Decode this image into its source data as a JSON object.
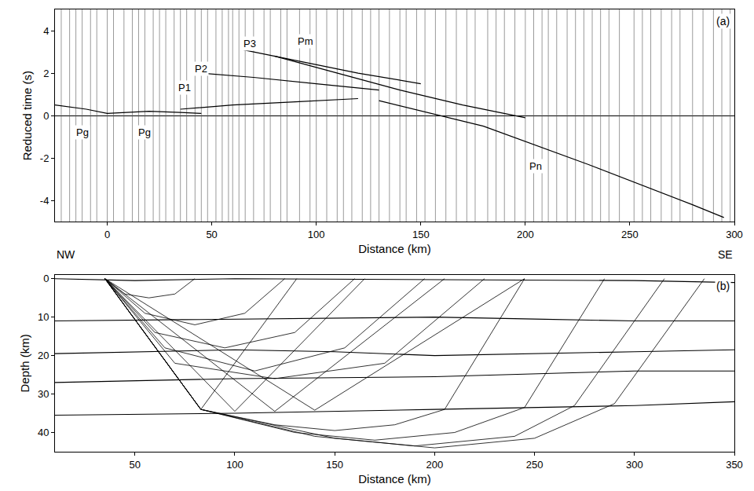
{
  "chart_data": [
    {
      "type": "line",
      "label": "(a)",
      "x_label": "Distance (km)",
      "y_label": "Reduced time (s)",
      "xlim": [
        -25,
        300
      ],
      "xticks": [
        0,
        50,
        100,
        150,
        200,
        250,
        300
      ],
      "ylim": [
        -5,
        5
      ],
      "yticks": [
        -4,
        -2,
        0,
        2,
        4
      ],
      "annotations": [
        {
          "text": "NW"
        },
        {
          "text": "SE"
        }
      ],
      "stations": [
        -22,
        -18,
        -15,
        -12,
        -8,
        -5,
        0,
        3,
        8,
        12,
        15,
        18,
        22,
        25,
        28,
        32,
        35,
        38,
        42,
        45,
        48,
        52,
        55,
        58,
        60,
        63,
        66,
        70,
        75,
        78,
        83,
        86,
        92,
        97,
        100,
        105,
        110,
        113,
        117,
        122,
        126,
        130,
        135,
        140,
        143,
        148,
        152,
        157,
        162,
        167,
        172,
        176,
        182,
        186,
        190,
        195,
        200,
        204,
        208,
        211,
        215,
        220,
        224,
        228,
        232,
        236,
        240,
        245,
        252,
        256,
        260,
        265,
        270,
        274,
        280,
        285,
        290,
        294,
        298
      ],
      "series": [
        {
          "name": "Pg",
          "color": "#000000",
          "x": [
            -25,
            -10,
            0,
            10,
            20,
            35,
            45
          ],
          "values": [
            0.5,
            0.3,
            0.1,
            0.15,
            0.2,
            0.15,
            0.1
          ],
          "labels": [
            [
              -12,
              -0.8
            ],
            [
              18,
              -0.8
            ]
          ]
        },
        {
          "name": "P1",
          "color": "#000000",
          "x": [
            35,
            60,
            90,
            120
          ],
          "values": [
            0.3,
            0.5,
            0.65,
            0.8
          ],
          "labels": [
            [
              37,
              1.3
            ]
          ]
        },
        {
          "name": "P2",
          "color": "#000000",
          "x": [
            45,
            70,
            100,
            130
          ],
          "values": [
            2.0,
            1.8,
            1.5,
            1.2
          ],
          "labels": [
            [
              45,
              2.2
            ]
          ]
        },
        {
          "name": "P3",
          "color": "#000000",
          "x": [
            65,
            90,
            120,
            150
          ],
          "values": [
            3.1,
            2.6,
            2.0,
            1.5
          ],
          "labels": [
            [
              68,
              3.4
            ]
          ]
        },
        {
          "name": "Pm",
          "color": "#000000",
          "x": [
            80,
            110,
            140,
            170,
            200
          ],
          "values": [
            2.8,
            2.0,
            1.2,
            0.5,
            -0.1
          ],
          "labels": [
            [
              95,
              3.5
            ]
          ]
        },
        {
          "name": "Pn",
          "color": "#000000",
          "x": [
            130,
            180,
            230,
            280,
            295
          ],
          "values": [
            0.7,
            -0.5,
            -2.3,
            -4.2,
            -4.8
          ],
          "labels": [
            [
              205,
              -2.4
            ]
          ]
        }
      ]
    },
    {
      "type": "line",
      "label": "(b)",
      "x_label": "Distance (km)",
      "y_label": "Depth (km)",
      "xlim": [
        10,
        350
      ],
      "xticks": [
        50,
        100,
        150,
        200,
        250,
        300,
        350
      ],
      "ylim": [
        45,
        -1
      ],
      "yticks": [
        0,
        10,
        20,
        30,
        40
      ],
      "boundaries": [
        {
          "x": [
            10,
            50,
            100,
            200,
            300,
            350
          ],
          "values": [
            0,
            0.5,
            0,
            0.3,
            0.5,
            1
          ]
        },
        {
          "x": [
            10,
            100,
            200,
            250,
            300,
            350
          ],
          "values": [
            11,
            10.5,
            10,
            10.5,
            11,
            11
          ]
        },
        {
          "x": [
            10,
            100,
            150,
            200,
            300,
            350
          ],
          "values": [
            19.5,
            18.5,
            19,
            20,
            19,
            18.5
          ]
        },
        {
          "x": [
            10,
            100,
            200,
            300,
            350
          ],
          "values": [
            27,
            26,
            25.5,
            24,
            24
          ]
        },
        {
          "x": [
            10,
            100,
            200,
            300,
            350
          ],
          "values": [
            35.5,
            35,
            34,
            33,
            32
          ]
        }
      ],
      "rays": [
        {
          "x": [
            35,
            45,
            57,
            70,
            80
          ],
          "values": [
            0,
            4,
            5,
            4,
            0
          ]
        },
        {
          "x": [
            35,
            55,
            80,
            105,
            125
          ],
          "values": [
            0,
            9,
            12,
            9,
            0
          ]
        },
        {
          "x": [
            35,
            60,
            95,
            130,
            160
          ],
          "values": [
            0,
            14,
            18,
            14,
            0
          ]
        },
        {
          "x": [
            35,
            65,
            110,
            155,
            195
          ],
          "values": [
            0,
            18,
            24,
            18,
            0
          ]
        },
        {
          "x": [
            35,
            70,
            120,
            175,
            225
          ],
          "values": [
            0,
            22,
            26,
            22,
            0
          ]
        },
        {
          "x": [
            35,
            83,
            131
          ],
          "values": [
            0,
            34,
            0
          ]
        },
        {
          "x": [
            35,
            100,
            165
          ],
          "values": [
            0,
            34.5,
            0
          ]
        },
        {
          "x": [
            35,
            120,
            205
          ],
          "values": [
            0,
            34.5,
            0
          ]
        },
        {
          "x": [
            35,
            140,
            245
          ],
          "values": [
            0,
            34.2,
            0
          ]
        },
        {
          "x": [
            35,
            83,
            120,
            150,
            180,
            205,
            245
          ],
          "values": [
            0,
            34,
            38,
            39.5,
            38,
            34,
            0
          ]
        },
        {
          "x": [
            35,
            83,
            130,
            170,
            210,
            245,
            285
          ],
          "values": [
            0,
            34,
            40,
            42,
            40,
            33.5,
            0
          ]
        },
        {
          "x": [
            35,
            83,
            140,
            190,
            240,
            270,
            315
          ],
          "values": [
            0,
            34,
            41,
            43.5,
            41,
            33,
            0
          ]
        },
        {
          "x": [
            35,
            83,
            150,
            200,
            250,
            290,
            335
          ],
          "values": [
            0,
            34,
            41.5,
            44,
            41.5,
            32.5,
            0
          ]
        }
      ]
    }
  ]
}
